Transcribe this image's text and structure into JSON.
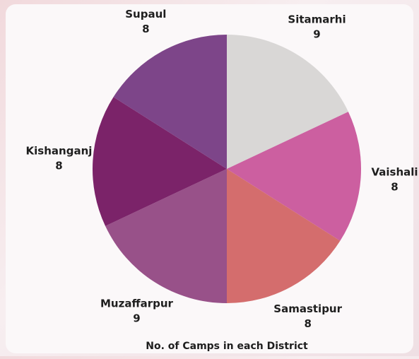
{
  "chart_data": {
    "type": "pie",
    "title": "No. of Camps in each District",
    "categories": [
      "Sitamarhi",
      "Vaishali",
      "Samastipur",
      "Muzaffarpur",
      "Kishanganj",
      "Supaul"
    ],
    "values": [
      9,
      8,
      8,
      9,
      8,
      8
    ],
    "colors": [
      "#d9d7d6",
      "#cc5fa0",
      "#d46d6d",
      "#985189",
      "#7b2369",
      "#7d4589"
    ]
  }
}
